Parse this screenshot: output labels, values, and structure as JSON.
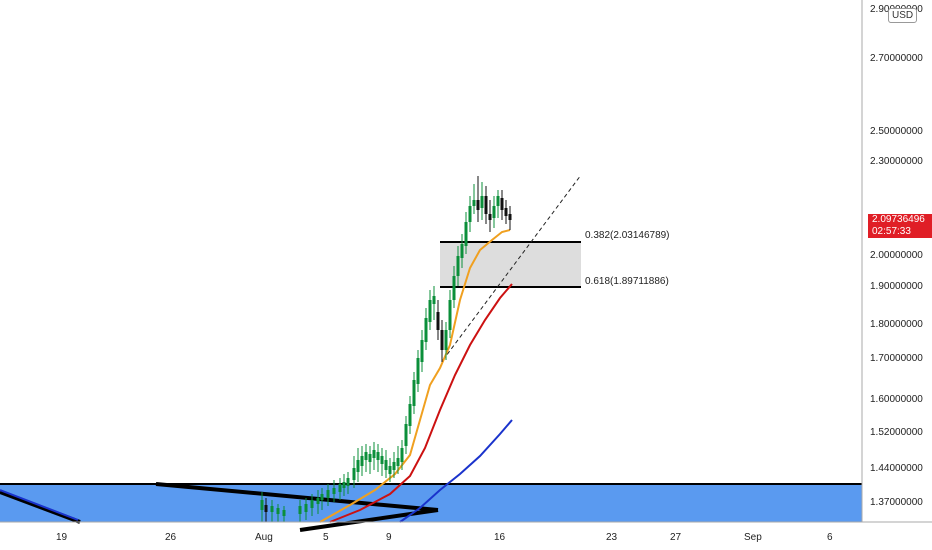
{
  "chart_data": {
    "type": "candlestick",
    "y_ticks": [
      "2.70000000",
      "2.50000000",
      "2.30000000",
      "2.00000000",
      "1.90000000",
      "1.80000000",
      "1.70000000",
      "1.60000000",
      "1.52000000",
      "1.44000000",
      "1.37000000"
    ],
    "y_top_partial": "2.90000000",
    "currency": "USD",
    "x_ticks": [
      "19",
      "26",
      "Aug",
      "5",
      "9",
      "16",
      "23",
      "27",
      "Sep",
      "6"
    ],
    "last_price": "2.09736496",
    "countdown": "02:57:33",
    "fib_levels": [
      {
        "ratio": "0.382",
        "value": "2.03146789",
        "label": "0.382(2.03146789)"
      },
      {
        "ratio": "0.618",
        "value": "1.89711886",
        "label": "0.618(1.89711886)"
      }
    ],
    "support_zone": {
      "top": 1.395,
      "bottom": 1.3
    },
    "series": [
      {
        "type": "ma",
        "color": "#f0a020"
      },
      {
        "type": "ma",
        "color": "#cc1111"
      },
      {
        "type": "ma",
        "color": "#1a33cc"
      }
    ],
    "colors": {
      "up": "#0b8f3a",
      "down": "#111111",
      "zone": "#5a9af0",
      "fib_box": "#dddddd",
      "price_tag": "#e01e26"
    }
  }
}
